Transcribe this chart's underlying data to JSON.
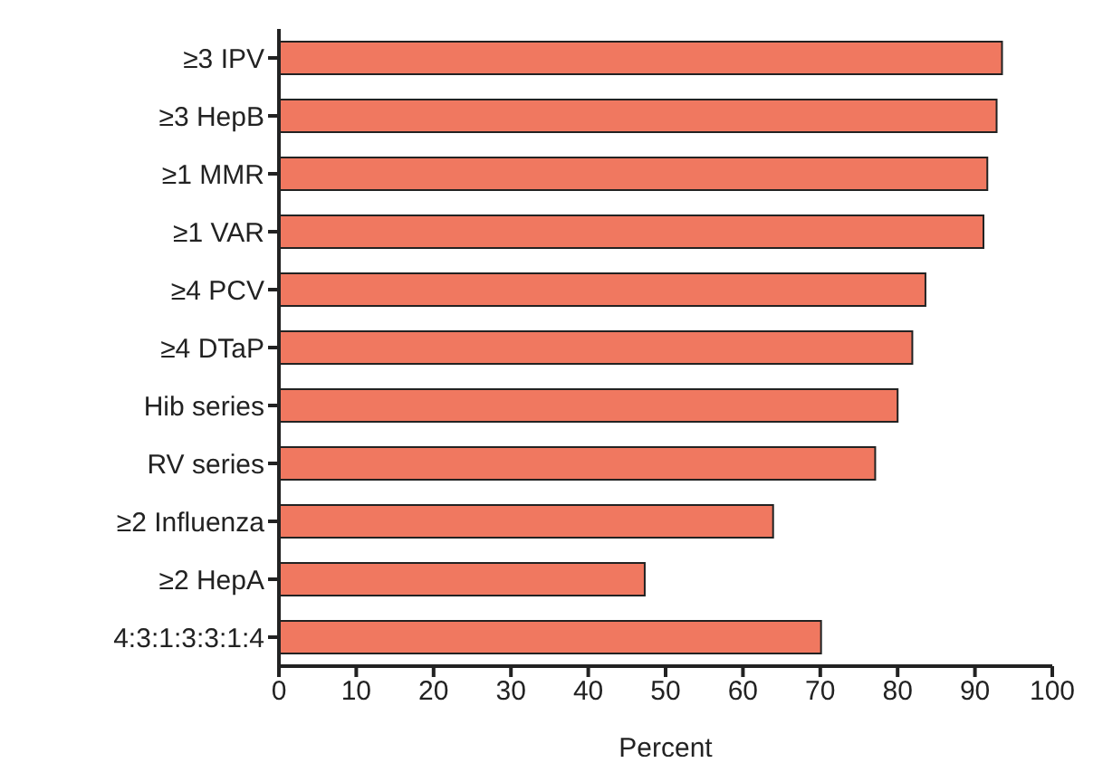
{
  "chart_data": {
    "type": "bar",
    "orientation": "horizontal",
    "xlabel": "Percent",
    "categories": [
      "≥3 IPV",
      "≥3 HepB",
      "≥1 MMR",
      "≥1 VAR",
      "≥4 PCV",
      "≥4 DTaP",
      "Hib series",
      "RV series",
      "≥2 Influenza",
      "≥2 HepA",
      "4:3:1:3:3:1:4"
    ],
    "values": [
      93.5,
      92.8,
      91.6,
      91.1,
      83.6,
      81.9,
      80.0,
      77.1,
      63.9,
      47.3,
      70.1
    ],
    "color": "#f07860",
    "xlim": [
      0,
      100
    ],
    "xticks": [
      0,
      10,
      20,
      30,
      40,
      50,
      60,
      70,
      80,
      90,
      100
    ],
    "grid": false,
    "legend": false
  }
}
